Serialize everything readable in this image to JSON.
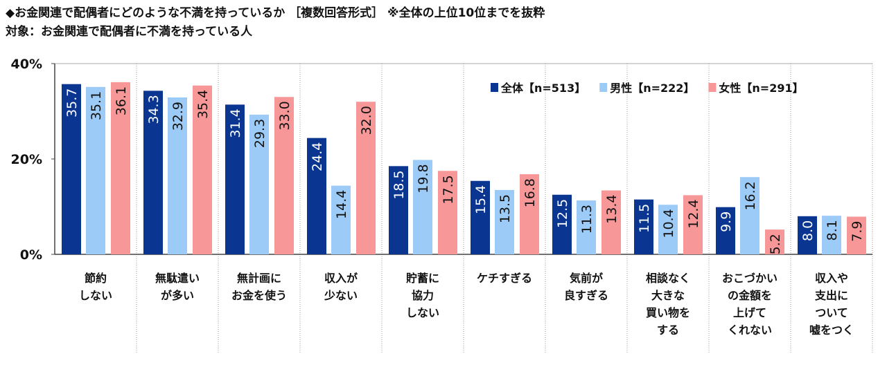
{
  "title": "◆お金関連で配偶者にどのような不満を持っているか ［複数回答形式］ ※全体の上位10位までを抜粋",
  "subtitle": "対象：お金関連で配偶者に不満を持っている人",
  "chart_data": {
    "type": "bar",
    "ylim": [
      0,
      40
    ],
    "yticks": [
      "0%",
      "20%",
      "40%"
    ],
    "ytick_values": [
      0,
      20,
      40
    ],
    "legend_position": "top-right",
    "categories": [
      [
        "節約",
        "しない"
      ],
      [
        "無駄遣い",
        "が多い"
      ],
      [
        "無計画に",
        "お金を使う"
      ],
      [
        "収入が",
        "少ない"
      ],
      [
        "貯蓄に",
        "協力",
        "しない"
      ],
      [
        "ケチすぎる"
      ],
      [
        "気前が",
        "良すぎる"
      ],
      [
        "相談なく",
        "大きな",
        "買い物を",
        "する"
      ],
      [
        "おこづかい",
        "の金額を",
        "上げて",
        "くれない"
      ],
      [
        "収入や",
        "支出に",
        "ついて",
        "嘘をつく"
      ]
    ],
    "series": [
      {
        "name": "全体【n=513】",
        "color": "#0a3591",
        "label_color": "#ffffff",
        "values": [
          35.7,
          34.3,
          31.4,
          24.4,
          18.5,
          15.4,
          12.5,
          11.5,
          9.9,
          8.0
        ]
      },
      {
        "name": "男性【n=222】",
        "color": "#9dcbf7",
        "label_color": "#111111",
        "values": [
          35.1,
          32.9,
          29.3,
          14.4,
          19.8,
          13.5,
          11.3,
          10.4,
          16.2,
          8.1
        ]
      },
      {
        "name": "女性【n=291】",
        "color": "#f79797",
        "label_color": "#111111",
        "values": [
          36.1,
          35.4,
          33.0,
          32.0,
          17.5,
          16.8,
          13.4,
          12.4,
          5.2,
          7.9
        ]
      }
    ]
  }
}
